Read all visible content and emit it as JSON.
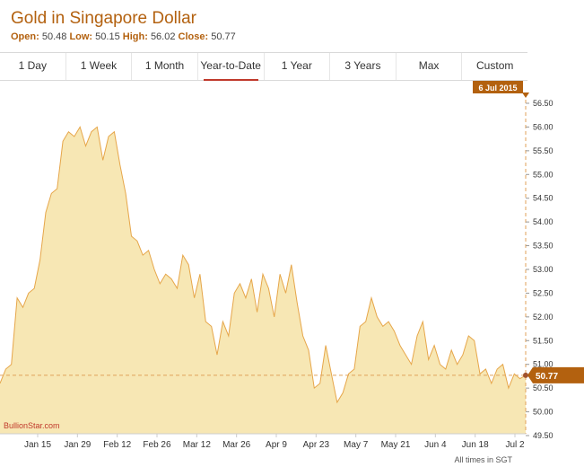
{
  "header": {
    "title": "Gold in Singapore Dollar",
    "open_label": "Open:",
    "open": "50.48",
    "low_label": "Low:",
    "low": "50.15",
    "high_label": "High:",
    "high": "56.02",
    "close_label": "Close:",
    "close": "50.77"
  },
  "tabs": [
    {
      "label": "1 Day"
    },
    {
      "label": "1 Week"
    },
    {
      "label": "1 Month"
    },
    {
      "label": "Year-to-Date",
      "active": true
    },
    {
      "label": "1 Year"
    },
    {
      "label": "3 Years"
    },
    {
      "label": "Max"
    },
    {
      "label": "Custom"
    }
  ],
  "chart_data": {
    "type": "area",
    "xlabels": [
      "Jan 15",
      "Jan 29",
      "Feb 12",
      "Feb 26",
      "Mar 12",
      "Mar 26",
      "Apr 9",
      "Apr 23",
      "May 7",
      "May 21",
      "Jun 4",
      "Jun 18",
      "Jul 2"
    ],
    "yticks": [
      "56.50",
      "56.00",
      "55.50",
      "55.00",
      "54.50",
      "54.00",
      "53.50",
      "53.00",
      "52.50",
      "52.00",
      "51.50",
      "51.00",
      "50.50",
      "50.00",
      "49.50"
    ],
    "ylim": [
      49.5,
      56.5
    ],
    "values": [
      50.6,
      50.9,
      51.0,
      52.4,
      52.2,
      52.5,
      52.6,
      53.2,
      54.2,
      54.6,
      54.7,
      55.7,
      55.9,
      55.8,
      56.0,
      55.6,
      55.9,
      56.0,
      55.3,
      55.8,
      55.9,
      55.2,
      54.6,
      53.7,
      53.6,
      53.3,
      53.4,
      53.0,
      52.7,
      52.9,
      52.8,
      52.6,
      53.3,
      53.1,
      52.4,
      52.9,
      51.9,
      51.8,
      51.2,
      51.9,
      51.6,
      52.5,
      52.7,
      52.4,
      52.8,
      52.1,
      52.9,
      52.6,
      52.0,
      52.9,
      52.5,
      53.1,
      52.3,
      51.6,
      51.3,
      50.5,
      50.6,
      51.4,
      50.8,
      50.2,
      50.4,
      50.8,
      50.9,
      51.8,
      51.9,
      52.4,
      52.0,
      51.8,
      51.9,
      51.7,
      51.4,
      51.2,
      51.0,
      51.6,
      51.9,
      51.1,
      51.4,
      51.0,
      50.9,
      51.3,
      51.0,
      51.2,
      51.6,
      51.5,
      50.8,
      50.9,
      50.6,
      50.9,
      51.0,
      50.5,
      50.8,
      50.7,
      50.77
    ],
    "tooltip_date": "6 Jul 2015",
    "last_value": "50.77",
    "watermark": "BullionStar.com",
    "footnote": "All times in SGT",
    "colors": {
      "line": "#e6a64a",
      "fill": "#f7e7b4",
      "accent": "#b3610f",
      "dashed": "#e0a25a"
    },
    "grid": false
  }
}
